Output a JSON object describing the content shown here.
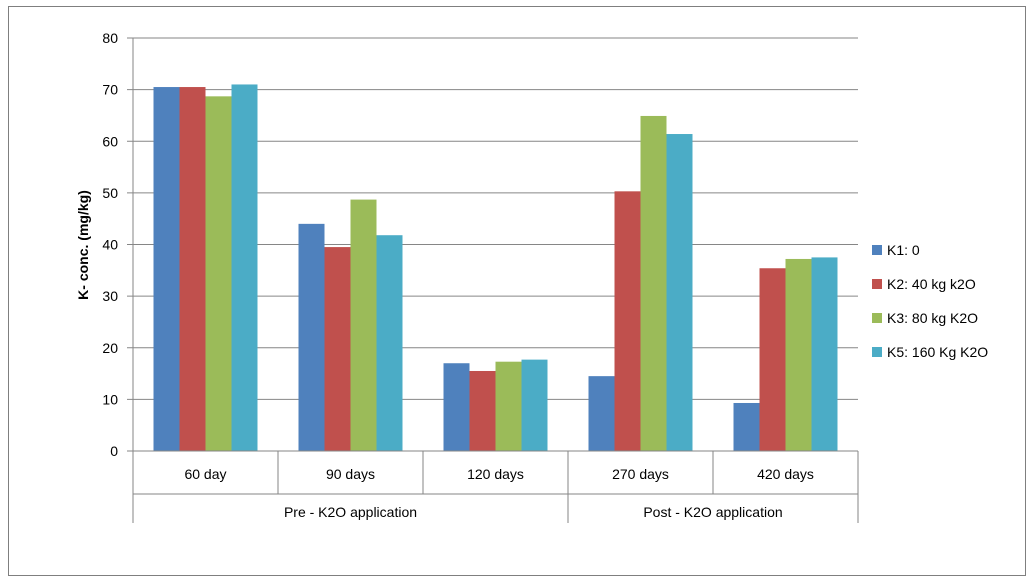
{
  "chart_data": {
    "type": "bar",
    "ylabel": "K- conc. (mg/kg)",
    "ylim": [
      0,
      80
    ],
    "yticks": [
      0,
      10,
      20,
      30,
      40,
      50,
      60,
      70,
      80
    ],
    "grid": true,
    "legend_position": "right",
    "categories": [
      "60 day",
      "90 days",
      "120 days",
      "270 days",
      "420 days"
    ],
    "groups": [
      {
        "label": "Pre - K2O application",
        "categories": [
          "60 day",
          "90 days",
          "120 days"
        ]
      },
      {
        "label": "Post - K2O application",
        "categories": [
          "270 days",
          "420 days"
        ]
      }
    ],
    "series": [
      {
        "name": "K1: 0",
        "color": "#4f81bd",
        "values": [
          70.5,
          44.0,
          17.0,
          14.5,
          9.3
        ]
      },
      {
        "name": "K2: 40 kg k2O",
        "color": "#c0504d",
        "values": [
          70.5,
          39.5,
          15.5,
          50.3,
          35.4
        ]
      },
      {
        "name": "K3: 80 kg K2O",
        "color": "#9bbb59",
        "values": [
          68.7,
          48.7,
          17.3,
          64.9,
          37.2
        ]
      },
      {
        "name": "K5: 160 Kg K2O",
        "color": "#4bacc6",
        "values": [
          71.0,
          41.8,
          17.7,
          61.4,
          37.5
        ]
      }
    ]
  }
}
